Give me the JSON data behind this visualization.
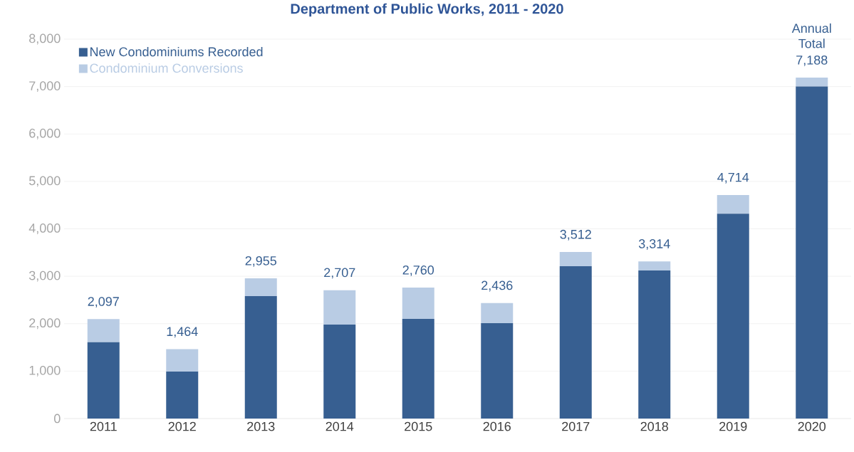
{
  "chart_data": {
    "type": "bar",
    "title": "Department of Public Works, 2011 - 2020",
    "categories": [
      "2011",
      "2012",
      "2013",
      "2014",
      "2015",
      "2016",
      "2017",
      "2018",
      "2019",
      "2020"
    ],
    "stacked": true,
    "series": [
      {
        "name": "New Condominiums Recorded",
        "color": "#375f91",
        "values": [
          1610,
          990,
          2580,
          1980,
          2100,
          2010,
          3210,
          3120,
          4320,
          7000
        ]
      },
      {
        "name": "Condominium Conversions",
        "color": "#b9cce4",
        "values": [
          487,
          474,
          375,
          727,
          660,
          426,
          302,
          194,
          394,
          188
        ]
      }
    ],
    "totals": [
      "2,097",
      "1,464",
      "2,955",
      "2,707",
      "2,760",
      "2,436",
      "3,512",
      "3,314",
      "4,714",
      "7,188"
    ],
    "annotations": [
      "Annual Total"
    ],
    "ylim": [
      0,
      8000
    ],
    "yticks": [
      {
        "value": 0,
        "label": "0"
      },
      {
        "value": 1000,
        "label": "1,000"
      },
      {
        "value": 2000,
        "label": "2,000"
      },
      {
        "value": 3000,
        "label": "3,000"
      },
      {
        "value": 4000,
        "label": "4,000"
      },
      {
        "value": 5000,
        "label": "5,000"
      },
      {
        "value": 6000,
        "label": "6,000"
      },
      {
        "value": 7000,
        "label": "7,000"
      },
      {
        "value": 8000,
        "label": "8,000"
      }
    ],
    "grid": "y",
    "legend": "top left"
  }
}
